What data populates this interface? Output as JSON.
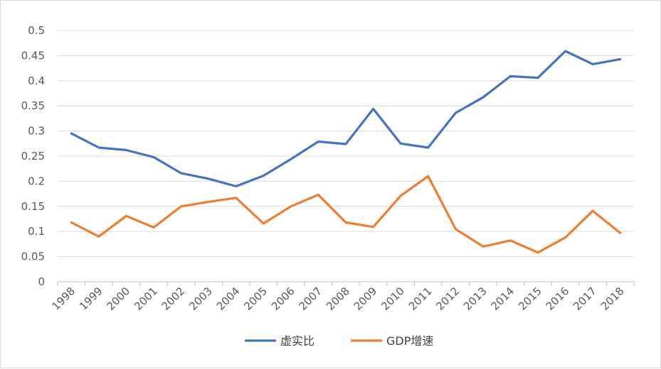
{
  "chart_data": {
    "type": "line",
    "title": "",
    "xlabel": "",
    "ylabel": "",
    "categories": [
      "1998",
      "1999",
      "2000",
      "2001",
      "2002",
      "2003",
      "2004",
      "2005",
      "2006",
      "2007",
      "2008",
      "2009",
      "2010",
      "2011",
      "2012",
      "2013",
      "2014",
      "2015",
      "2016",
      "2017",
      "2018"
    ],
    "ylim": [
      0,
      0.5
    ],
    "yticks": [
      "0",
      "0.05",
      "0.1",
      "0.15",
      "0.2",
      "0.25",
      "0.3",
      "0.35",
      "0.4",
      "0.45",
      "0.5"
    ],
    "grid": true,
    "legend_position": "bottom",
    "series": [
      {
        "name": "虚实比",
        "color": "#4472C4",
        "values": [
          0.295,
          0.267,
          0.262,
          0.248,
          0.216,
          0.205,
          0.19,
          0.211,
          0.244,
          0.279,
          0.274,
          0.344,
          0.275,
          0.267,
          0.336,
          0.367,
          0.409,
          0.406,
          0.459,
          0.433,
          0.443
        ]
      },
      {
        "name": "GDP增速",
        "color": "#ED7D31",
        "values": [
          0.118,
          0.09,
          0.131,
          0.108,
          0.15,
          0.159,
          0.167,
          0.116,
          0.15,
          0.173,
          0.118,
          0.109,
          0.171,
          0.21,
          0.105,
          0.07,
          0.082,
          0.058,
          0.088,
          0.141,
          0.097
        ]
      }
    ]
  }
}
